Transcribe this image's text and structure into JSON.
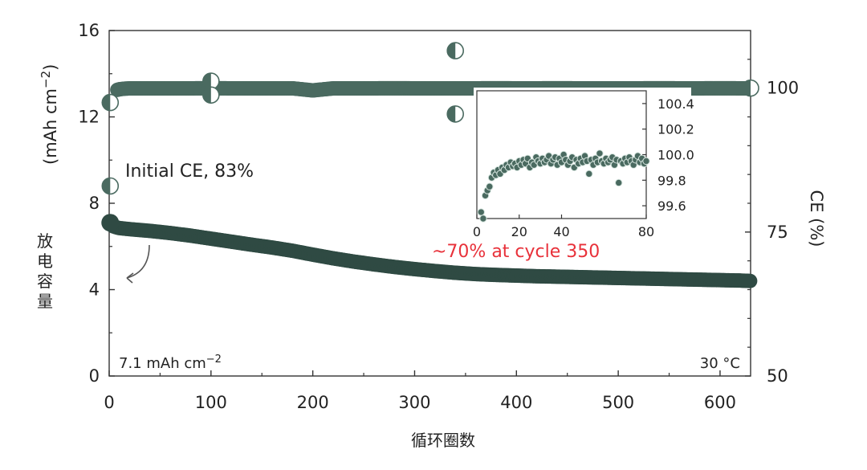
{
  "chart_data": {
    "type": "scatter",
    "xlabel": "循环圈数",
    "ylabel_left_top": "(mAh cm",
    "ylabel_left_sup": "−2",
    "ylabel_left_close": ")",
    "ylabel_left_cn": [
      "放",
      "电",
      "容",
      "量"
    ],
    "ylabel_right": "CE (%)",
    "xlim": [
      0,
      630
    ],
    "ylim_left": [
      0,
      16
    ],
    "ylim_right": [
      50,
      110
    ],
    "x_ticks": [
      0,
      100,
      200,
      300,
      400,
      500,
      600
    ],
    "y_left_ticks": [
      0,
      4,
      8,
      12,
      16
    ],
    "y_right_ticks": [
      50,
      75,
      100
    ],
    "grid": false,
    "colors": {
      "capacity": "#2f4a43",
      "ce": "#4a6a60",
      "highlight": "#e8313a",
      "axis": "#333333"
    },
    "series": [
      {
        "role": "capacity",
        "axis": "left",
        "x": [
          1,
          3,
          6,
          10,
          20,
          40,
          60,
          80,
          100,
          120,
          140,
          160,
          180,
          200,
          220,
          240,
          260,
          280,
          300,
          320,
          340,
          360,
          380,
          400,
          420,
          440,
          460,
          480,
          500,
          520,
          540,
          560,
          580,
          600,
          620,
          630
        ],
        "y": [
          7.1,
          6.95,
          6.9,
          6.85,
          6.8,
          6.72,
          6.62,
          6.5,
          6.36,
          6.22,
          6.08,
          5.95,
          5.8,
          5.62,
          5.45,
          5.3,
          5.17,
          5.05,
          4.95,
          4.86,
          4.78,
          4.72,
          4.68,
          4.65,
          4.62,
          4.6,
          4.58,
          4.56,
          4.54,
          4.52,
          4.5,
          4.48,
          4.46,
          4.44,
          4.42,
          4.4
        ]
      },
      {
        "role": "ce",
        "axis": "right",
        "x": [
          1,
          3,
          6,
          10,
          15,
          20,
          40,
          60,
          80,
          100,
          120,
          140,
          160,
          180,
          200,
          220,
          240,
          260,
          280,
          300,
          320,
          340,
          360,
          380,
          400,
          420,
          440,
          460,
          480,
          500,
          520,
          540,
          560,
          580,
          600,
          620,
          630
        ],
        "y": [
          83,
          99.0,
          99.6,
          99.8,
          99.9,
          99.95,
          99.95,
          99.95,
          99.96,
          99.97,
          99.96,
          99.95,
          99.95,
          99.96,
          99.6,
          99.95,
          99.96,
          99.96,
          99.97,
          99.96,
          99.95,
          99.96,
          99.96,
          99.97,
          99.96,
          99.96,
          99.97,
          99.96,
          99.95,
          99.96,
          99.96,
          99.97,
          99.96,
          99.96,
          99.97,
          99.96,
          99.96
        ]
      }
    ],
    "annotations": {
      "initial_ce": "Initial CE, 83%",
      "retention": "~70% at cycle 350",
      "start_capacity": "7.1 mAh cm",
      "start_capacity_sup": "−2",
      "temperature": "30 °C"
    },
    "inset": {
      "type": "scatter",
      "xlim": [
        0,
        80
      ],
      "ylim": [
        99.5,
        100.5
      ],
      "x_ticks": [
        0,
        20,
        40,
        80
      ],
      "y_ticks": [
        99.6,
        99.8,
        100.0,
        100.2,
        100.4
      ],
      "x": [
        2,
        3,
        4,
        5,
        6,
        7,
        8,
        9,
        10,
        11,
        12,
        13,
        14,
        15,
        16,
        17,
        18,
        19,
        20,
        21,
        22,
        23,
        24,
        25,
        26,
        27,
        28,
        29,
        30,
        31,
        32,
        33,
        34,
        35,
        36,
        37,
        38,
        39,
        40,
        41,
        42,
        43,
        44,
        45,
        46,
        47,
        48,
        49,
        50,
        51,
        52,
        53,
        54,
        55,
        56,
        57,
        58,
        59,
        60,
        61,
        62,
        63,
        64,
        65,
        66,
        67,
        68,
        69,
        70,
        71,
        72,
        73,
        74,
        75,
        76,
        77,
        78,
        79,
        80
      ],
      "y": [
        99.55,
        99.5,
        99.68,
        99.72,
        99.75,
        99.82,
        99.86,
        99.84,
        99.88,
        99.85,
        99.9,
        99.88,
        99.92,
        99.9,
        99.94,
        99.91,
        99.93,
        99.9,
        99.95,
        99.92,
        99.96,
        99.93,
        99.97,
        99.9,
        99.94,
        99.92,
        99.98,
        99.95,
        99.93,
        99.97,
        99.94,
        99.96,
        99.99,
        99.93,
        99.96,
        99.98,
        99.92,
        99.97,
        99.94,
        100.0,
        99.96,
        99.92,
        99.95,
        99.98,
        99.9,
        99.96,
        99.93,
        99.97,
        99.94,
        99.99,
        99.95,
        99.85,
        99.96,
        99.92,
        99.97,
        99.94,
        100.01,
        99.95,
        99.93,
        99.97,
        99.94,
        99.96,
        99.98,
        99.92,
        99.96,
        99.78,
        99.95,
        99.93,
        99.97,
        99.94,
        99.98,
        99.95,
        99.92,
        99.96,
        99.99,
        99.94,
        99.97,
        99.93,
        99.95
      ]
    }
  }
}
